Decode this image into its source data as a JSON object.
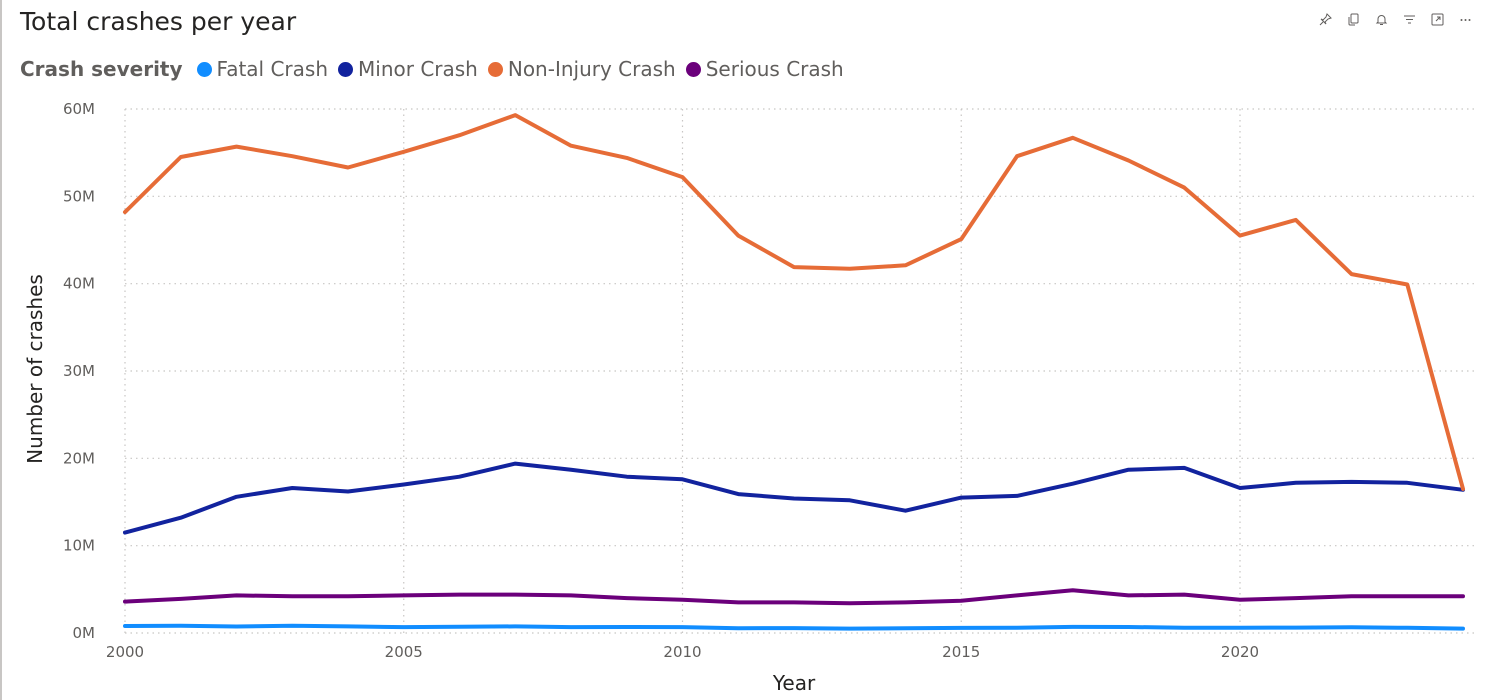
{
  "header": {
    "title": "Total crashes per year"
  },
  "toolbar": {
    "icons": [
      "pin-icon",
      "copy-icon",
      "bell-icon",
      "filter-icon",
      "focus-mode-icon",
      "more-options-icon"
    ]
  },
  "legend": {
    "title": "Crash severity"
  },
  "chart_data": {
    "type": "line",
    "title": "Total crashes per year",
    "xlabel": "Year",
    "ylabel": "Number of crashes",
    "xlim": [
      2000,
      2024
    ],
    "ylim": [
      0,
      60000000
    ],
    "x_ticks": [
      2000,
      2005,
      2010,
      2015,
      2020
    ],
    "x_tick_labels": [
      "2000",
      "2005",
      "2010",
      "2015",
      "2020"
    ],
    "y_ticks": [
      0,
      10000000,
      20000000,
      30000000,
      40000000,
      50000000,
      60000000
    ],
    "y_tick_labels": [
      "0M",
      "10M",
      "20M",
      "30M",
      "40M",
      "50M",
      "60M"
    ],
    "grid": true,
    "legend_position": "top-left",
    "x": [
      2000,
      2001,
      2002,
      2003,
      2004,
      2005,
      2006,
      2007,
      2008,
      2009,
      2010,
      2011,
      2012,
      2013,
      2014,
      2015,
      2016,
      2017,
      2018,
      2019,
      2020,
      2021,
      2022,
      2023,
      2024
    ],
    "series": [
      {
        "name": "Fatal Crash",
        "color": "#118dff",
        "values": [
          800000,
          820000,
          750000,
          830000,
          760000,
          680000,
          720000,
          760000,
          680000,
          690000,
          680000,
          550000,
          560000,
          500000,
          540000,
          580000,
          600000,
          700000,
          690000,
          610000,
          610000,
          620000,
          660000,
          600000,
          500000
        ]
      },
      {
        "name": "Minor Crash",
        "color": "#12239e",
        "values": [
          11500000,
          13200000,
          15600000,
          16600000,
          16200000,
          17000000,
          17900000,
          19400000,
          18700000,
          17900000,
          17600000,
          15900000,
          15400000,
          15200000,
          14000000,
          15500000,
          15700000,
          17100000,
          18700000,
          18900000,
          16600000,
          17200000,
          17300000,
          17200000,
          16400000
        ]
      },
      {
        "name": "Non-Injury Crash",
        "color": "#e66c37",
        "values": [
          48200000,
          54500000,
          55700000,
          54600000,
          53300000,
          55100000,
          57000000,
          59300000,
          55800000,
          54400000,
          52200000,
          45500000,
          41900000,
          41700000,
          42100000,
          45100000,
          54600000,
          56700000,
          54100000,
          51000000,
          45500000,
          47300000,
          41100000,
          39900000,
          16500000
        ]
      },
      {
        "name": "Serious Crash",
        "color": "#6b007b",
        "values": [
          3600000,
          3900000,
          4300000,
          4200000,
          4200000,
          4300000,
          4400000,
          4400000,
          4300000,
          4000000,
          3800000,
          3500000,
          3500000,
          3400000,
          3500000,
          3700000,
          4300000,
          4900000,
          4300000,
          4400000,
          3800000,
          4000000,
          4200000,
          4200000,
          4200000
        ]
      }
    ]
  }
}
